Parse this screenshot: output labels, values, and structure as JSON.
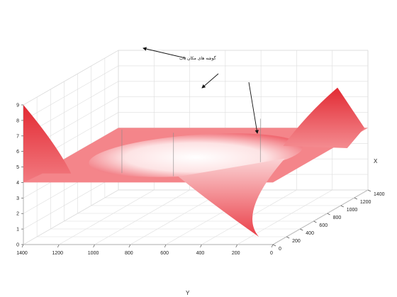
{
  "chart_data": {
    "type": "surface3d",
    "title": "",
    "xlabel": "X",
    "ylabel": "Y",
    "zlabel": "",
    "xlim": [
      0,
      1400
    ],
    "ylim": [
      0,
      1400
    ],
    "zlim": [
      0,
      9
    ],
    "x_ticks": [
      "0",
      "200",
      "400",
      "600",
      "800",
      "1000",
      "1200",
      "1400"
    ],
    "y_ticks": [
      "0",
      "200",
      "400",
      "600",
      "800",
      "1000",
      "1200",
      "1400"
    ],
    "z_ticks": [
      "0",
      "1",
      "2",
      "3",
      "4",
      "5",
      "6",
      "7",
      "8",
      "9"
    ],
    "grid": true,
    "colors": {
      "surface_high": "#e8303a",
      "surface_mid": "#f27a80",
      "surface_low": "#ffffff"
    },
    "surface": {
      "plateau_z": 4,
      "bowl_center": {
        "x": 700,
        "y": 700
      },
      "bowl_radius": 560,
      "bowl_min_z": 0,
      "peak_a": {
        "x": 0,
        "y": 1400,
        "z": 9
      },
      "peak_b": {
        "x": 1400,
        "y": 0,
        "z": 6.8
      },
      "drop_corner": {
        "x": 0,
        "y": 0,
        "z": 0
      }
    },
    "annotation": {
      "text": "گوشه های مکان باب"
    }
  }
}
